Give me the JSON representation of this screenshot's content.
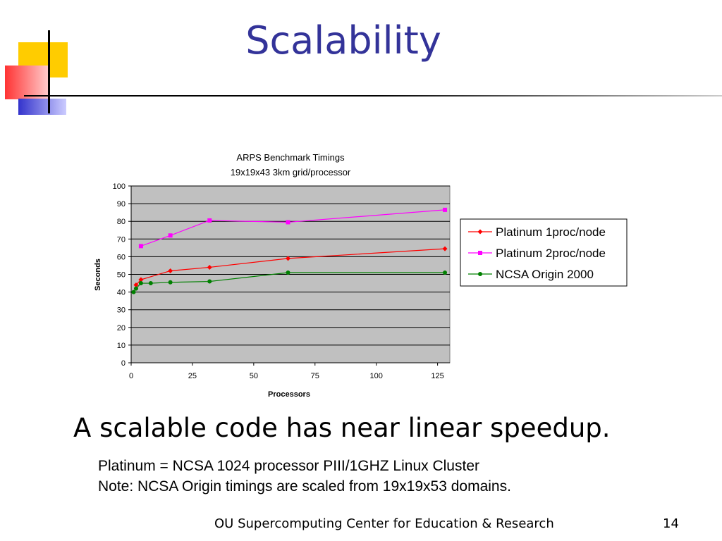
{
  "slide": {
    "title": "Scalability",
    "subtitle": "A scalable code has near linear speedup.",
    "notes": [
      "Platinum = NCSA 1024 processor PIII/1GHZ Linux Cluster",
      "Note: NCSA Origin timings are scaled from 19x19x53 domains."
    ],
    "footer": "OU Supercomputing Center for Education & Research",
    "page_number": "14"
  },
  "colors": {
    "title": "#333399",
    "plot_background": "#c0c0c0",
    "deco_yellow": "#ffcc00",
    "deco_red": "#ff3333",
    "deco_blue": "#3333cc"
  },
  "chart_data": {
    "type": "line",
    "title": "ARPS Benchmark Timings",
    "subtitle": "19x19x43 3km grid/processor",
    "xlabel": "Processors",
    "ylabel": "Seconds",
    "xlim": [
      0,
      130
    ],
    "ylim": [
      0,
      100
    ],
    "xticks": [
      0,
      25,
      50,
      75,
      100,
      125
    ],
    "yticks": [
      0,
      10,
      20,
      30,
      40,
      50,
      60,
      70,
      80,
      90,
      100
    ],
    "grid": true,
    "legend_position": "right",
    "series": [
      {
        "name": "Platinum 1proc/node",
        "color": "#ff0000",
        "marker": "diamond",
        "points": [
          [
            2,
            44
          ],
          [
            4,
            47
          ],
          [
            16,
            52
          ],
          [
            32,
            54
          ],
          [
            64,
            59
          ],
          [
            128,
            64.5
          ]
        ]
      },
      {
        "name": "Platinum 2proc/node",
        "color": "#ff00ff",
        "marker": "square",
        "points": [
          [
            4,
            66
          ],
          [
            16,
            72
          ],
          [
            32,
            80.5
          ],
          [
            64,
            79.5
          ],
          [
            128,
            86.5
          ]
        ]
      },
      {
        "name": "NCSA Origin 2000",
        "color": "#008000",
        "marker": "circle",
        "points": [
          [
            1,
            40
          ],
          [
            2,
            42
          ],
          [
            4,
            45
          ],
          [
            8,
            45
          ],
          [
            16,
            45.5
          ],
          [
            32,
            46
          ],
          [
            64,
            51
          ],
          [
            128,
            51
          ]
        ]
      }
    ]
  }
}
